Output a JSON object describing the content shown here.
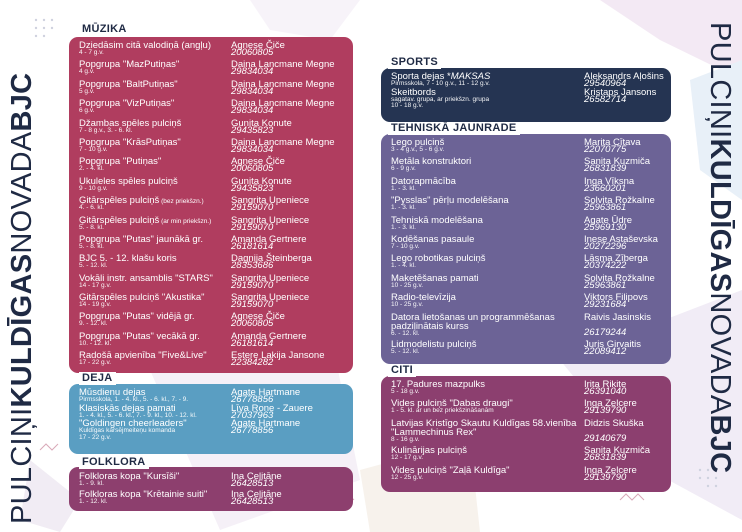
{
  "title": {
    "prefix": "PULCIŅI",
    "bold1": "KULDĪGAS",
    "mid": "NOVADA",
    "bold2": "BJC"
  },
  "colors": {
    "muzika": "#b03d5f",
    "deja": "#5a9ec2",
    "folklora": "#8d3f6e",
    "sports": "#253452",
    "tehniska": "#6c6396",
    "citi": "#8c3f6f",
    "dark": "#1f2a44"
  },
  "muzika": {
    "title": "MŪZIKA",
    "rows": [
      {
        "name": "Dziedāsim citā valodiņā (angļu)",
        "note": "",
        "sub": "4 - 7 g.v.",
        "contact": "Agnese Čiče",
        "phone": "20060805"
      },
      {
        "name": "Popgrupa \"MazPutiņas\"",
        "note": "",
        "sub": "4 g.v.",
        "contact": "Daina Lancmane Megne",
        "phone": "29834034"
      },
      {
        "name": "Popgrupa \"BaltPutiņas\"",
        "note": "",
        "sub": "5 g.v.",
        "contact": "Daina Lancmane Megne",
        "phone": "29834034"
      },
      {
        "name": "Popgrupa \"VizPutiņas\"",
        "note": "",
        "sub": "6 g.v.",
        "contact": "Daina Lancmane Megne",
        "phone": "29834034"
      },
      {
        "name": "Džambas spēles pulciņš",
        "note": "",
        "sub": "7 - 8 g.v., 3. - 6. kl.",
        "contact": "Gunita Konute",
        "phone": "29435823"
      },
      {
        "name": "Popgrupa \"KrāsPutiņas\"",
        "note": "",
        "sub": "7 - 10 g.v.",
        "contact": "Daina Lancmane Megne",
        "phone": "29834034"
      },
      {
        "name": "Popgrupa \"Putiņas\"",
        "note": "",
        "sub": "2. - 4. kl.",
        "contact": "Agnese Čiče",
        "phone": "20060805"
      },
      {
        "name": "Ukuleles spēles pulciņš",
        "note": "",
        "sub": "9 - 10 g.v.",
        "contact": "Gunita Konute",
        "phone": "29435823"
      },
      {
        "name": "Ģitārspēles pulciņš",
        "note": " (bez priekšzn.)",
        "sub": "4. - 6. kl.",
        "contact": "Sangrita Upeniece",
        "phone": "29159070"
      },
      {
        "name": "Ģitārspēles pulciņš",
        "note": " (ar min priekšzn.)",
        "sub": "5. - 8. kl.",
        "contact": "Sangrita Upeniece",
        "phone": "29159070"
      },
      {
        "name": "Popgrupa \"Putas\" jaunākā gr.",
        "note": "",
        "sub": "5. - 8. kl.",
        "contact": "Amanda Gertnere",
        "phone": "26181614"
      },
      {
        "name": "BJC 5. - 12. klašu koris",
        "note": "",
        "sub": "5. - 12. kl.",
        "contact": "Dagnija Šteinberga",
        "phone": "28353686"
      },
      {
        "name": "Vokāli instr. ansamblis \"STARS\"",
        "note": "",
        "sub": "14 - 17 g.v.",
        "contact": "Sangrita Upeniece",
        "phone": "29159070"
      },
      {
        "name": "Ģitārspēles pulciņš \"Akustika\"",
        "note": "",
        "sub": "14 - 19 g.v.",
        "contact": "Sangrita Upeniece",
        "phone": "29159070"
      },
      {
        "name": "Popgrupa \"Putas\" vidējā gr.",
        "note": "",
        "sub": "9. - 12. kl.",
        "contact": "Agnese Čiče",
        "phone": "20060805"
      },
      {
        "name": "Popgrupa \"Putas\" vecākā gr.",
        "note": "",
        "sub": "10. - 12. kl.",
        "contact": "Amanda Gertnere",
        "phone": "26181614"
      },
      {
        "name": "Radošā apvienība \"Five&Live\"",
        "note": "",
        "sub": "17 - 22 g.v.",
        "contact": "Estere Lakija Jansone",
        "phone": "22384282"
      }
    ]
  },
  "deja": {
    "title": "DEJA",
    "rows": [
      {
        "name": "Mūsdienu dejas",
        "note": "",
        "sub": "Pirmsskola, 1. - 4. kl., 5. - 6. kl., 7. - 9.",
        "contact": "Agate Hartmane",
        "phone": "26778856"
      },
      {
        "name": "Klasiskās dejas pamati",
        "note": "",
        "sub": "1. - 4. kl., 5. - 6. kl., 7. - 9. kl., 10. - 12. kl.",
        "contact": "Līva Rone - Zauere",
        "phone": "27037963"
      },
      {
        "name": "\"Goldingen cheerleaders\"",
        "note": "",
        "sub": "Kuldīgas karsējmeiteņu komanda",
        "contact": "Agate Hartmane",
        "phone": "26778856"
      },
      {
        "name": "",
        "note": "",
        "sub": "17 - 22 g.v.",
        "contact": "",
        "phone": ""
      }
    ]
  },
  "folklora": {
    "title": "FOLKLORA",
    "rows": [
      {
        "name": "Folkloras kopa \"Kursīši\"",
        "note": "",
        "sub": "1. - 9. kl.",
        "contact": "Ina Celitāne",
        "phone": "26428513"
      },
      {
        "name": "Folkloras kopa \"Krētainie suiti\"",
        "note": "",
        "sub": "1. - 12. kl.",
        "contact": "Ina Celitāne",
        "phone": "26428513"
      }
    ]
  },
  "sports": {
    "title": "SPORTS",
    "rows": [
      {
        "name": "Sporta dejas *",
        "note": "MAKSAS",
        "sub": "Pirmsskola, 7 - 10 g.v., 11 - 12 g.v.",
        "contact": "Aleksandrs Aļošins",
        "phone": "29540964"
      },
      {
        "name": "Skeitbords",
        "note": "",
        "sub": "sagatav. grupa, ar priekšzn. grupa",
        "contact": "Kristaps Jansons",
        "phone": "26582714"
      },
      {
        "name": "",
        "note": "",
        "sub": "10 - 18 g.v.",
        "contact": "",
        "phone": ""
      }
    ]
  },
  "tehniska": {
    "title": "TEHNISKĀ JAUNRADE",
    "rows": [
      {
        "name": "Lego pulciņš",
        "note": "",
        "sub": "3 - 4 g.v., 5 - 6 g.v.",
        "contact": "Marita Cītava",
        "phone": "22070775"
      },
      {
        "name": "Metāla konstruktori",
        "note": "",
        "sub": "6 - 9 g.v.",
        "contact": "Sanita Kuzmiča",
        "phone": "26831839"
      },
      {
        "name": "Datorapmācība",
        "note": "",
        "sub": "1. - 3. kl.",
        "contact": "Inga Vīksna",
        "phone": "23660201"
      },
      {
        "name": "\"Pysslas\" pērļu modelēšana",
        "note": "",
        "sub": "1. - 3. kl.",
        "contact": "Solvita Rožkalne",
        "phone": "25963861"
      },
      {
        "name": "Tehniskā modelēšana",
        "note": "",
        "sub": "1. - 3. kl.",
        "contact": "Agate Ūdre",
        "phone": "25969130"
      },
      {
        "name": "Kodēšanas pasaule",
        "note": "",
        "sub": "7 - 10 g.v.",
        "contact": "Inese Astaševska",
        "phone": "20272296"
      },
      {
        "name": "Lego robotikas pulciņš",
        "note": "",
        "sub": "1. - 4. kl.",
        "contact": "Lāsma Zīberga",
        "phone": "20374222"
      },
      {
        "name": "Maketēšanas pamati",
        "note": "",
        "sub": "10 - 25 g.v.",
        "contact": "Solvita Rožkalne",
        "phone": "25963861"
      },
      {
        "name": "Radio-televīzija",
        "note": "",
        "sub": "10 - 25 g.v.",
        "contact": "Viktors Filipovs",
        "phone": "29231684"
      },
      {
        "name": "Datora lietošanas un programmēšanas",
        "name2": "padziļinātais kurss",
        "note": "",
        "sub": "6. - 12. kl.",
        "contact": "Raivis Jasinskis",
        "phone": "26179244"
      },
      {
        "name": "Lidmodelistu pulciņš",
        "note": "",
        "sub": "5. - 12. kl.",
        "contact": "Juris Girvaitis",
        "phone": "22089412"
      }
    ]
  },
  "citi": {
    "title": "CITI",
    "rows": [
      {
        "name": "17. Padures mazpulks",
        "note": "",
        "sub": "5 - 18 g.v.",
        "contact": "Irita Rikite",
        "phone": "26391040"
      },
      {
        "name": "Vides pulciņš \"Dabas draugi\"",
        "note": "",
        "sub": "1 - 5. kl. ar un bez priekšzināšanām",
        "contact": "Inga Zelcere",
        "phone": "29139790"
      },
      {
        "name": "Latvijas Kristīgo Skautu Kuldīgas 58.vienība",
        "name2": "\"Lammechinus Rex\"",
        "note": "",
        "sub": "8 - 16 g.v.",
        "contact": "Didzis Skuška",
        "phone": "29140679"
      },
      {
        "name": "Kulinārijas pulciņš",
        "note": "",
        "sub": "12 - 17 g.v.",
        "contact": "Sanita Kuzmiča",
        "phone": "26831839"
      },
      {
        "name": "Vides pulciņš \"Zaļā Kuldīga\"",
        "note": "",
        "sub": "12 - 25 g.v.",
        "contact": "Inga Zelcere",
        "phone": "29139790"
      }
    ]
  }
}
